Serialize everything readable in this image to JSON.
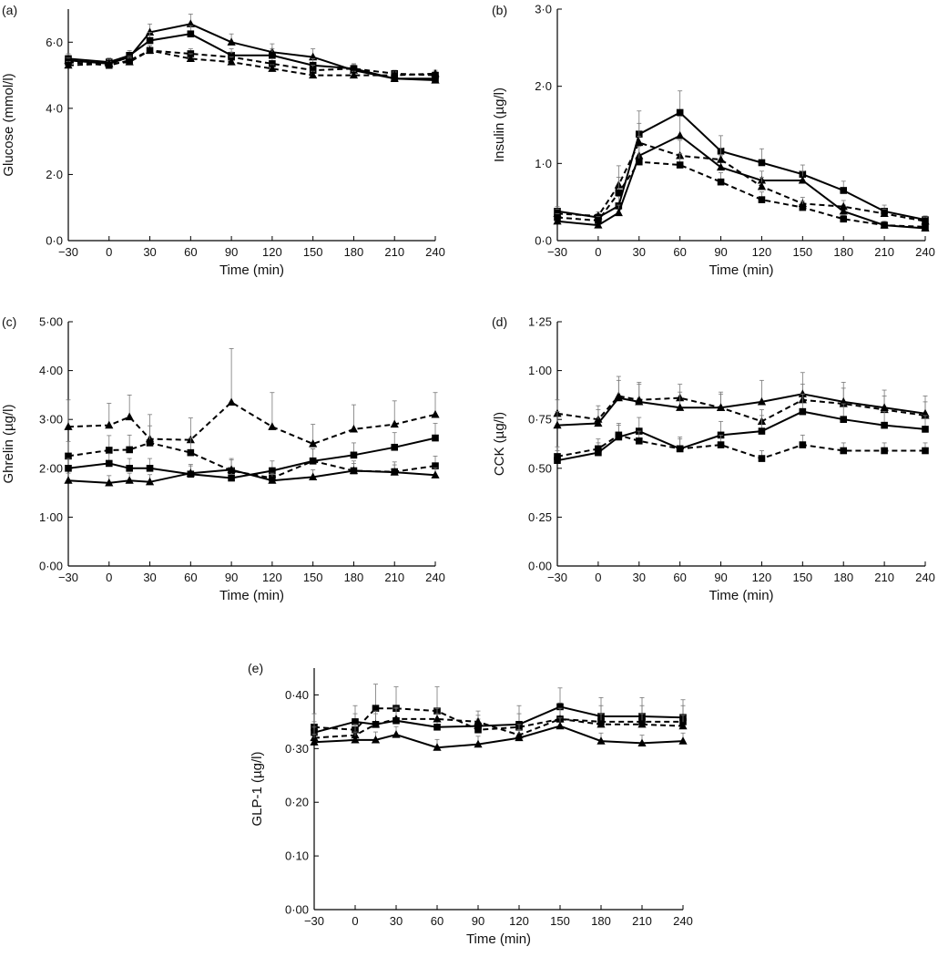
{
  "chart_data": [
    {
      "id": "a",
      "panel_label": "(a)",
      "type": "line",
      "xlabel": "Time (min)",
      "ylabel": "Glucose (mmol/l)",
      "x": [
        -30,
        0,
        15,
        30,
        60,
        90,
        120,
        150,
        180,
        210,
        240
      ],
      "x_ticks": [
        -30,
        0,
        30,
        60,
        90,
        120,
        150,
        180,
        210,
        240
      ],
      "x_tick_labels": [
        "−30",
        "0",
        "30",
        "60",
        "90",
        "120",
        "150",
        "180",
        "210",
        "240"
      ],
      "ylim": [
        0,
        7.0
      ],
      "y_ticks": [
        0,
        2,
        4,
        6
      ],
      "y_tick_labels": [
        "0·0",
        "2·0",
        "4·0",
        "6·0"
      ],
      "series": [
        {
          "name": "solid-triangle",
          "style": "solid",
          "marker": "triangle",
          "values": [
            5.45,
            5.35,
            5.55,
            6.3,
            6.55,
            6.0,
            5.7,
            5.55,
            5.15,
            4.9,
            4.85
          ],
          "errors": [
            0.15,
            0.12,
            0.15,
            0.25,
            0.3,
            0.25,
            0.25,
            0.25,
            0.15,
            0.1,
            0.1
          ]
        },
        {
          "name": "solid-square",
          "style": "solid",
          "marker": "square",
          "values": [
            5.5,
            5.4,
            5.6,
            6.05,
            6.25,
            5.6,
            5.6,
            5.3,
            5.2,
            4.9,
            4.9
          ],
          "errors": [
            0.15,
            0.12,
            0.15,
            0.25,
            0.25,
            0.2,
            0.2,
            0.2,
            0.15,
            0.1,
            0.1
          ]
        },
        {
          "name": "dashed-square",
          "style": "dashed",
          "marker": "square",
          "values": [
            5.4,
            5.3,
            5.45,
            5.75,
            5.65,
            5.55,
            5.35,
            5.15,
            5.2,
            5.05,
            5.0
          ],
          "errors": [
            0.12,
            0.12,
            0.12,
            0.15,
            0.15,
            0.15,
            0.15,
            0.15,
            0.12,
            0.1,
            0.1
          ]
        },
        {
          "name": "dashed-triangle",
          "style": "dashed",
          "marker": "triangle",
          "values": [
            5.3,
            5.35,
            5.4,
            5.75,
            5.5,
            5.4,
            5.2,
            5.0,
            5.0,
            5.0,
            5.05
          ],
          "errors": [
            0.12,
            0.12,
            0.12,
            0.15,
            0.15,
            0.15,
            0.12,
            0.12,
            0.12,
            0.1,
            0.1
          ]
        }
      ]
    },
    {
      "id": "b",
      "panel_label": "(b)",
      "type": "line",
      "xlabel": "Time (min)",
      "ylabel": "Insulin (µg/l)",
      "x": [
        -30,
        0,
        15,
        30,
        60,
        90,
        120,
        150,
        180,
        210,
        240
      ],
      "x_ticks": [
        -30,
        0,
        30,
        60,
        90,
        120,
        150,
        180,
        210,
        240
      ],
      "x_tick_labels": [
        "−30",
        "0",
        "30",
        "60",
        "90",
        "120",
        "150",
        "180",
        "210",
        "240"
      ],
      "ylim": [
        0,
        3.0
      ],
      "y_ticks": [
        0,
        1,
        2,
        3
      ],
      "y_tick_labels": [
        "0·0",
        "1·0",
        "2·0",
        "3·0"
      ],
      "series": [
        {
          "name": "solid-square",
          "style": "solid",
          "marker": "square",
          "values": [
            0.38,
            0.3,
            0.45,
            1.38,
            1.66,
            1.16,
            1.01,
            0.86,
            0.65,
            0.38,
            0.27
          ],
          "errors": [
            0.06,
            0.05,
            0.12,
            0.3,
            0.28,
            0.2,
            0.18,
            0.12,
            0.12,
            0.08,
            0.05
          ]
        },
        {
          "name": "solid-triangle",
          "style": "solid",
          "marker": "triangle",
          "values": [
            0.25,
            0.2,
            0.36,
            1.1,
            1.36,
            0.95,
            0.78,
            0.78,
            0.38,
            0.2,
            0.16
          ],
          "errors": [
            0.05,
            0.04,
            0.1,
            0.25,
            0.25,
            0.15,
            0.12,
            0.12,
            0.08,
            0.05,
            0.04
          ]
        },
        {
          "name": "dashed-triangle",
          "style": "dashed",
          "marker": "triangle",
          "values": [
            0.35,
            0.32,
            0.72,
            1.27,
            1.1,
            1.05,
            0.7,
            0.48,
            0.44,
            0.35,
            0.25
          ],
          "errors": [
            0.06,
            0.05,
            0.25,
            0.25,
            0.2,
            0.15,
            0.12,
            0.08,
            0.08,
            0.06,
            0.05
          ]
        },
        {
          "name": "dashed-square",
          "style": "dashed",
          "marker": "square",
          "values": [
            0.3,
            0.26,
            0.62,
            1.02,
            0.98,
            0.76,
            0.53,
            0.43,
            0.28,
            0.2,
            0.18
          ],
          "errors": [
            0.05,
            0.05,
            0.2,
            0.2,
            0.15,
            0.12,
            0.1,
            0.08,
            0.05,
            0.05,
            0.04
          ]
        }
      ]
    },
    {
      "id": "c",
      "panel_label": "(c)",
      "type": "line",
      "xlabel": "Time (min)",
      "ylabel": "Ghrelin (µg/l)",
      "x": [
        -30,
        0,
        15,
        30,
        60,
        90,
        120,
        150,
        180,
        210,
        240
      ],
      "x_ticks": [
        -30,
        0,
        30,
        60,
        90,
        120,
        150,
        180,
        210,
        240
      ],
      "x_tick_labels": [
        "−30",
        "0",
        "30",
        "60",
        "90",
        "120",
        "150",
        "180",
        "210",
        "240"
      ],
      "ylim": [
        0,
        5.0
      ],
      "y_ticks": [
        0,
        1,
        2,
        3,
        4,
        5
      ],
      "y_tick_labels": [
        "0·00",
        "1·00",
        "2·00",
        "3·00",
        "4·00",
        "5·00"
      ],
      "series": [
        {
          "name": "dashed-triangle",
          "style": "dashed",
          "marker": "triangle",
          "values": [
            2.85,
            2.88,
            3.05,
            2.6,
            2.58,
            3.35,
            2.85,
            2.5,
            2.8,
            2.9,
            3.1
          ],
          "errors": [
            0.55,
            0.45,
            0.45,
            0.5,
            0.45,
            1.1,
            0.7,
            0.4,
            0.5,
            0.48,
            0.45
          ]
        },
        {
          "name": "dashed-square",
          "style": "dashed",
          "marker": "square",
          "values": [
            2.25,
            2.37,
            2.38,
            2.52,
            2.32,
            1.95,
            1.8,
            2.15,
            1.95,
            1.93,
            2.05
          ],
          "errors": [
            0.3,
            0.3,
            0.3,
            0.35,
            0.3,
            0.25,
            0.2,
            0.25,
            0.2,
            0.2,
            0.2
          ]
        },
        {
          "name": "solid-square",
          "style": "solid",
          "marker": "square",
          "values": [
            2.0,
            2.1,
            2.0,
            2.0,
            1.88,
            1.8,
            1.95,
            2.15,
            2.27,
            2.43,
            2.62
          ],
          "errors": [
            0.2,
            0.2,
            0.2,
            0.2,
            0.2,
            0.2,
            0.2,
            0.25,
            0.25,
            0.3,
            0.3
          ]
        },
        {
          "name": "solid-triangle",
          "style": "solid",
          "marker": "triangle",
          "values": [
            1.75,
            1.7,
            1.75,
            1.72,
            1.9,
            1.97,
            1.75,
            1.82,
            1.95,
            1.92,
            1.86
          ],
          "errors": [
            0.15,
            0.15,
            0.15,
            0.15,
            0.15,
            0.2,
            0.15,
            0.15,
            0.15,
            0.15,
            0.15
          ]
        }
      ]
    },
    {
      "id": "d",
      "panel_label": "(d)",
      "type": "line",
      "xlabel": "Time (min)",
      "ylabel": "CCK (µg/l)",
      "x": [
        -30,
        0,
        15,
        30,
        60,
        90,
        120,
        150,
        180,
        210,
        240
      ],
      "x_ticks": [
        -30,
        0,
        30,
        60,
        90,
        120,
        150,
        180,
        210,
        240
      ],
      "x_tick_labels": [
        "−30",
        "0",
        "30",
        "60",
        "90",
        "120",
        "150",
        "180",
        "210",
        "240"
      ],
      "ylim": [
        0,
        1.25
      ],
      "y_ticks": [
        0,
        0.25,
        0.5,
        0.75,
        1.0,
        1.25
      ],
      "y_tick_labels": [
        "0·00",
        "0·25",
        "0·50",
        "0·75",
        "1·00",
        "1·25"
      ],
      "series": [
        {
          "name": "dashed-triangle",
          "style": "dashed",
          "marker": "triangle",
          "values": [
            0.78,
            0.75,
            0.87,
            0.85,
            0.86,
            0.81,
            0.74,
            0.85,
            0.83,
            0.8,
            0.77
          ],
          "errors": [
            0.07,
            0.07,
            0.08,
            0.08,
            0.07,
            0.07,
            0.06,
            0.08,
            0.08,
            0.07,
            0.07
          ]
        },
        {
          "name": "solid-triangle",
          "style": "solid",
          "marker": "triangle",
          "values": [
            0.72,
            0.73,
            0.86,
            0.84,
            0.81,
            0.81,
            0.84,
            0.88,
            0.84,
            0.81,
            0.78
          ],
          "errors": [
            0.07,
            0.07,
            0.11,
            0.1,
            0.08,
            0.08,
            0.11,
            0.11,
            0.1,
            0.09,
            0.09
          ]
        },
        {
          "name": "solid-square",
          "style": "solid",
          "marker": "square",
          "values": [
            0.54,
            0.58,
            0.66,
            0.69,
            0.6,
            0.67,
            0.69,
            0.79,
            0.75,
            0.72,
            0.7
          ],
          "errors": [
            0.05,
            0.05,
            0.07,
            0.07,
            0.06,
            0.07,
            0.08,
            0.09,
            0.08,
            0.07,
            0.07
          ]
        },
        {
          "name": "dashed-square",
          "style": "dashed",
          "marker": "square",
          "values": [
            0.56,
            0.6,
            0.67,
            0.64,
            0.6,
            0.62,
            0.55,
            0.62,
            0.59,
            0.59,
            0.59
          ],
          "errors": [
            0.05,
            0.05,
            0.05,
            0.05,
            0.05,
            0.05,
            0.04,
            0.05,
            0.04,
            0.04,
            0.04
          ]
        }
      ]
    },
    {
      "id": "e",
      "panel_label": "(e)",
      "type": "line",
      "xlabel": "Time (min)",
      "ylabel": "GLP-1 (µg/l)",
      "x": [
        -30,
        0,
        15,
        30,
        60,
        90,
        120,
        150,
        180,
        210,
        240
      ],
      "x_ticks": [
        -30,
        0,
        30,
        60,
        90,
        120,
        150,
        180,
        210,
        240
      ],
      "x_tick_labels": [
        "−30",
        "0",
        "30",
        "60",
        "90",
        "120",
        "150",
        "180",
        "210",
        "240"
      ],
      "ylim": [
        0,
        0.45
      ],
      "y_ticks": [
        0,
        0.1,
        0.2,
        0.3,
        0.4
      ],
      "y_tick_labels": [
        "0·00",
        "0·10",
        "0·20",
        "0·30",
        "0·40"
      ],
      "series": [
        {
          "name": "dashed-square",
          "style": "dashed",
          "marker": "square",
          "values": [
            0.34,
            0.335,
            0.375,
            0.375,
            0.37,
            0.335,
            0.34,
            0.355,
            0.35,
            0.35,
            0.35
          ],
          "errors": [
            0.025,
            0.03,
            0.045,
            0.04,
            0.045,
            0.02,
            0.025,
            0.03,
            0.03,
            0.03,
            0.03
          ]
        },
        {
          "name": "solid-square",
          "style": "solid",
          "marker": "square",
          "values": [
            0.33,
            0.35,
            0.345,
            0.352,
            0.34,
            0.342,
            0.345,
            0.378,
            0.36,
            0.36,
            0.358
          ],
          "errors": [
            0.02,
            0.03,
            0.025,
            0.025,
            0.025,
            0.02,
            0.035,
            0.035,
            0.035,
            0.035,
            0.033
          ]
        },
        {
          "name": "dashed-triangle",
          "style": "dashed",
          "marker": "triangle",
          "values": [
            0.32,
            0.325,
            0.345,
            0.355,
            0.355,
            0.35,
            0.325,
            0.355,
            0.345,
            0.345,
            0.342
          ],
          "errors": [
            0.02,
            0.02,
            0.02,
            0.02,
            0.02,
            0.02,
            0.02,
            0.02,
            0.02,
            0.02,
            0.02
          ]
        },
        {
          "name": "solid-triangle",
          "style": "solid",
          "marker": "triangle",
          "values": [
            0.312,
            0.316,
            0.316,
            0.326,
            0.302,
            0.308,
            0.32,
            0.342,
            0.314,
            0.31,
            0.314
          ],
          "errors": [
            0.015,
            0.015,
            0.015,
            0.015,
            0.015,
            0.015,
            0.015,
            0.015,
            0.015,
            0.015,
            0.015
          ]
        }
      ]
    }
  ]
}
